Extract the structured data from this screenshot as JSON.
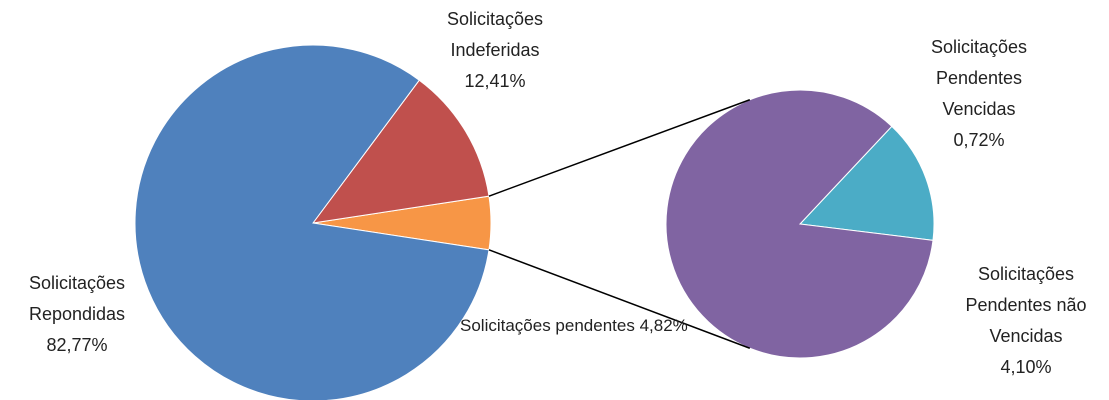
{
  "chart_data": {
    "type": "pie-of-pie",
    "categories": [
      "Solicitações Repondidas",
      "Solicitações Indeferidas",
      "Solicitações pendentes"
    ],
    "values": [
      82.77,
      12.41,
      4.82
    ],
    "value_labels": [
      "82,77%",
      "12,41%",
      "4,82%"
    ],
    "colors": [
      "#4f81bd",
      "#c0504d",
      "#f79646"
    ],
    "secondary": {
      "categories": [
        "Solicitações Pendentes Vencidas",
        "Solicitações Pendentes não Vencidas"
      ],
      "values": [
        0.72,
        4.1
      ],
      "value_labels": [
        "0,72%",
        "4,10%"
      ],
      "colors": [
        "#4bacc6",
        "#8064a2"
      ]
    }
  }
}
